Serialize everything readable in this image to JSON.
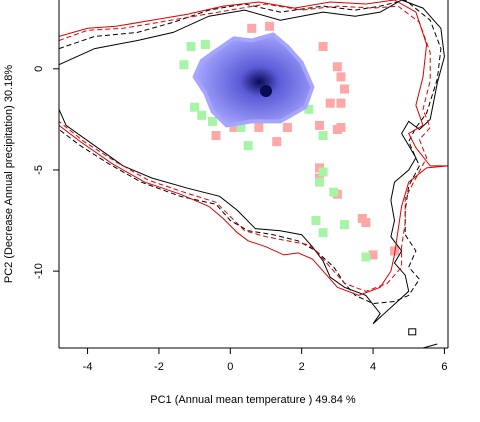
{
  "chart_data": {
    "type": "scatter",
    "title": "",
    "xlabel": "PC1 (Annual mean temperature ) 49.84 %",
    "ylabel": "PC2 (Decrease Annual precipitation) 30.18%",
    "xlim": [
      -4.8,
      6.1
    ],
    "ylim": [
      -13.8,
      3.4
    ],
    "x_ticks": [
      -4,
      -2,
      0,
      2,
      4,
      6
    ],
    "y_ticks": [
      0,
      -5,
      -10
    ],
    "x_tick_labels": [
      "-4",
      "-2",
      "0",
      "2",
      "4",
      "6"
    ],
    "y_tick_labels": [
      "0",
      "-5",
      "-10"
    ],
    "grid": false,
    "legend": "none",
    "colors": {
      "niche_a": "#ffa6a6",
      "niche_b": "#a6f5a6",
      "density_low": "#a6a6ff",
      "density_high": "#0a0a55",
      "environment_black": "#000000",
      "environment_red": "#e00000"
    },
    "density_peak": [
      1.0,
      -1.1
    ],
    "series": [
      {
        "style": "pixels-red",
        "points": [
          [
            0.6,
            2.0
          ],
          [
            1.1,
            2.1
          ],
          [
            2.6,
            1.1
          ],
          [
            3.0,
            0.1
          ],
          [
            3.1,
            -0.4
          ],
          [
            3.2,
            -1.0
          ],
          [
            2.8,
            -1.7
          ],
          [
            3.1,
            -1.7
          ],
          [
            2.5,
            -2.8
          ],
          [
            3.1,
            -2.9
          ],
          [
            3.0,
            -3.0
          ],
          [
            1.6,
            -2.9
          ],
          [
            0.8,
            -2.9
          ],
          [
            0.1,
            -2.9
          ],
          [
            -0.4,
            -3.3
          ],
          [
            1.3,
            -3.6
          ],
          [
            2.5,
            -4.9
          ],
          [
            2.5,
            -5.4
          ],
          [
            3.0,
            -6.2
          ],
          [
            3.7,
            -7.4
          ],
          [
            3.8,
            -7.6
          ],
          [
            4.0,
            -9.2
          ],
          [
            4.6,
            -9.0
          ]
        ]
      },
      {
        "style": "pixels-green",
        "points": [
          [
            -1.3,
            0.2
          ],
          [
            -1.1,
            1.1
          ],
          [
            -0.7,
            1.2
          ],
          [
            -1.0,
            -1.9
          ],
          [
            -0.8,
            -2.3
          ],
          [
            -0.5,
            -2.6
          ],
          [
            0.3,
            -2.9
          ],
          [
            0.5,
            -3.8
          ],
          [
            2.2,
            -2.0
          ],
          [
            2.6,
            -3.3
          ],
          [
            2.6,
            -5.1
          ],
          [
            2.5,
            -5.6
          ],
          [
            2.9,
            -6.1
          ],
          [
            2.4,
            -7.5
          ],
          [
            2.6,
            -8.1
          ],
          [
            3.2,
            -7.7
          ],
          [
            3.8,
            -9.3
          ]
        ]
      },
      {
        "style": "density",
        "points": [
          [
            -0.8,
            0.4
          ],
          [
            -0.4,
            0.9
          ],
          [
            0.1,
            1.5
          ],
          [
            0.6,
            1.4
          ],
          [
            1.2,
            1.7
          ],
          [
            1.6,
            1.1
          ],
          [
            2.0,
            0.3
          ],
          [
            2.3,
            -0.9
          ],
          [
            2.1,
            -1.9
          ],
          [
            1.4,
            -2.6
          ],
          [
            0.6,
            -2.6
          ],
          [
            -0.1,
            -2.8
          ],
          [
            -0.5,
            -2.1
          ],
          [
            -0.7,
            -1.2
          ],
          [
            -1.0,
            -0.4
          ]
        ]
      },
      {
        "style": "solid-black",
        "points": [
          [
            -4.8,
            0.2
          ],
          [
            -3.8,
            1.0
          ],
          [
            -2.6,
            1.4
          ],
          [
            -1.6,
            1.8
          ],
          [
            -0.6,
            2.6
          ],
          [
            0.4,
            2.9
          ],
          [
            1.4,
            2.4
          ],
          [
            2.6,
            2.8
          ],
          [
            3.5,
            2.6
          ],
          [
            4.2,
            2.8
          ],
          [
            4.8,
            3.4
          ],
          [
            5.4,
            3.0
          ],
          [
            5.9,
            2.0
          ],
          [
            6.0,
            0.6
          ],
          [
            5.8,
            -0.7
          ],
          [
            5.6,
            -2.5
          ],
          [
            5.3,
            -3.0
          ],
          [
            5.0,
            -2.6
          ],
          [
            4.8,
            -3.2
          ],
          [
            5.2,
            -4.4
          ],
          [
            5.0,
            -5.0
          ],
          [
            4.6,
            -5.6
          ],
          [
            4.5,
            -6.5
          ],
          [
            4.6,
            -7.5
          ],
          [
            4.5,
            -8.3
          ],
          [
            4.8,
            -9.0
          ],
          [
            4.6,
            -9.6
          ],
          [
            4.9,
            -10.2
          ],
          [
            5.0,
            -11.0
          ],
          [
            4.5,
            -11.8
          ],
          [
            4.0,
            -12.6
          ],
          [
            4.2,
            -12.1
          ],
          [
            3.8,
            -11.2
          ],
          [
            3.2,
            -10.8
          ],
          [
            2.8,
            -10.3
          ],
          [
            2.6,
            -9.5
          ],
          [
            2.3,
            -8.8
          ],
          [
            2.0,
            -8.2
          ],
          [
            1.4,
            -8.0
          ],
          [
            0.7,
            -7.9
          ],
          [
            0.2,
            -7.0
          ],
          [
            -0.3,
            -6.3
          ],
          [
            -1.2,
            -5.9
          ],
          [
            -2.2,
            -5.4
          ],
          [
            -3.0,
            -4.8
          ],
          [
            -3.8,
            -3.8
          ],
          [
            -4.6,
            -2.8
          ],
          [
            -4.8,
            -2.0
          ]
        ]
      },
      {
        "style": "dashed-black",
        "points": [
          [
            -4.8,
            1.0
          ],
          [
            -3.8,
            1.6
          ],
          [
            -2.6,
            1.8
          ],
          [
            -1.6,
            2.3
          ],
          [
            -0.6,
            2.9
          ],
          [
            0.4,
            3.2
          ],
          [
            1.4,
            2.8
          ],
          [
            2.6,
            3.1
          ],
          [
            3.5,
            2.9
          ],
          [
            4.2,
            3.1
          ],
          [
            4.9,
            3.4
          ],
          [
            5.6,
            2.4
          ],
          [
            5.9,
            1.0
          ],
          [
            5.8,
            -0.5
          ],
          [
            5.5,
            -2.2
          ],
          [
            5.2,
            -2.9
          ],
          [
            5.0,
            -3.6
          ],
          [
            5.3,
            -4.8
          ],
          [
            5.0,
            -5.8
          ],
          [
            4.9,
            -7.0
          ],
          [
            4.9,
            -8.2
          ],
          [
            5.2,
            -9.0
          ],
          [
            5.0,
            -9.8
          ],
          [
            5.3,
            -10.4
          ],
          [
            5.0,
            -11.2
          ],
          [
            4.6,
            -11.5
          ],
          [
            4.0,
            -11.6
          ],
          [
            3.5,
            -11.2
          ],
          [
            3.2,
            -10.6
          ],
          [
            2.9,
            -9.8
          ],
          [
            2.4,
            -9.0
          ],
          [
            1.9,
            -8.5
          ],
          [
            1.2,
            -8.2
          ],
          [
            0.5,
            -8.0
          ],
          [
            0.0,
            -7.5
          ],
          [
            -0.4,
            -6.7
          ],
          [
            -1.4,
            -6.3
          ],
          [
            -2.5,
            -5.6
          ],
          [
            -3.4,
            -4.7
          ],
          [
            -4.2,
            -3.8
          ],
          [
            -4.8,
            -3.0
          ]
        ]
      },
      {
        "style": "solid-red",
        "points": [
          [
            -4.8,
            1.6
          ],
          [
            -4.0,
            2.0
          ],
          [
            -3.2,
            2.1
          ],
          [
            -2.2,
            2.4
          ],
          [
            -1.2,
            2.7
          ],
          [
            -0.2,
            3.1
          ],
          [
            0.8,
            3.3
          ],
          [
            1.8,
            3.0
          ],
          [
            2.8,
            3.3
          ],
          [
            3.8,
            3.2
          ],
          [
            4.6,
            3.4
          ],
          [
            5.2,
            2.8
          ],
          [
            5.5,
            1.2
          ],
          [
            5.4,
            -0.4
          ],
          [
            5.2,
            -1.8
          ],
          [
            5.4,
            -2.8
          ],
          [
            5.0,
            -3.2
          ],
          [
            5.2,
            -3.9
          ],
          [
            5.6,
            -4.8
          ],
          [
            6.1,
            -4.8
          ],
          [
            5.5,
            -4.9
          ],
          [
            5.0,
            -5.6
          ],
          [
            4.8,
            -6.8
          ],
          [
            4.7,
            -8.0
          ],
          [
            4.6,
            -9.2
          ],
          [
            4.5,
            -10.0
          ],
          [
            4.2,
            -10.8
          ],
          [
            3.6,
            -11.2
          ],
          [
            3.0,
            -10.8
          ],
          [
            2.6,
            -10.0
          ],
          [
            2.3,
            -9.4
          ],
          [
            1.9,
            -9.1
          ],
          [
            1.5,
            -9.2
          ],
          [
            1.0,
            -8.8
          ],
          [
            0.5,
            -8.5
          ],
          [
            0.2,
            -8.1
          ],
          [
            -0.2,
            -7.4
          ],
          [
            -0.6,
            -6.8
          ],
          [
            -1.4,
            -6.2
          ],
          [
            -2.4,
            -5.6
          ],
          [
            -3.3,
            -4.7
          ],
          [
            -4.2,
            -3.6
          ],
          [
            -4.8,
            -2.8
          ]
        ]
      },
      {
        "style": "dashed-red",
        "points": [
          [
            -4.8,
            1.4
          ],
          [
            -4.0,
            1.9
          ],
          [
            -3.0,
            2.0
          ],
          [
            -2.0,
            2.3
          ],
          [
            -1.0,
            2.6
          ],
          [
            0.0,
            2.9
          ],
          [
            1.0,
            3.2
          ],
          [
            2.0,
            2.9
          ],
          [
            3.0,
            3.1
          ],
          [
            4.0,
            3.0
          ],
          [
            4.7,
            3.1
          ],
          [
            5.3,
            2.3
          ],
          [
            5.6,
            0.8
          ],
          [
            5.6,
            -0.6
          ],
          [
            5.4,
            -2.0
          ],
          [
            5.6,
            -2.9
          ],
          [
            5.3,
            -3.5
          ],
          [
            5.5,
            -4.4
          ],
          [
            5.2,
            -5.4
          ],
          [
            4.9,
            -6.4
          ],
          [
            4.9,
            -7.6
          ],
          [
            4.8,
            -8.8
          ],
          [
            4.8,
            -9.8
          ],
          [
            4.4,
            -10.6
          ],
          [
            3.8,
            -11.0
          ],
          [
            3.2,
            -10.6
          ],
          [
            2.8,
            -9.8
          ],
          [
            2.5,
            -9.2
          ],
          [
            2.2,
            -8.7
          ],
          [
            1.6,
            -8.5
          ],
          [
            1.0,
            -8.3
          ],
          [
            0.4,
            -8.0
          ],
          [
            0.0,
            -7.3
          ],
          [
            -0.4,
            -6.6
          ],
          [
            -1.3,
            -6.1
          ],
          [
            -2.3,
            -5.5
          ],
          [
            -3.2,
            -4.6
          ],
          [
            -4.1,
            -3.6
          ],
          [
            -4.8,
            -2.6
          ]
        ]
      },
      {
        "style": "outlier",
        "points": [
          [
            5.0,
            -13.0
          ],
          [
            5.4,
            -13.8
          ],
          [
            5.8,
            -13.6
          ]
        ]
      }
    ]
  }
}
